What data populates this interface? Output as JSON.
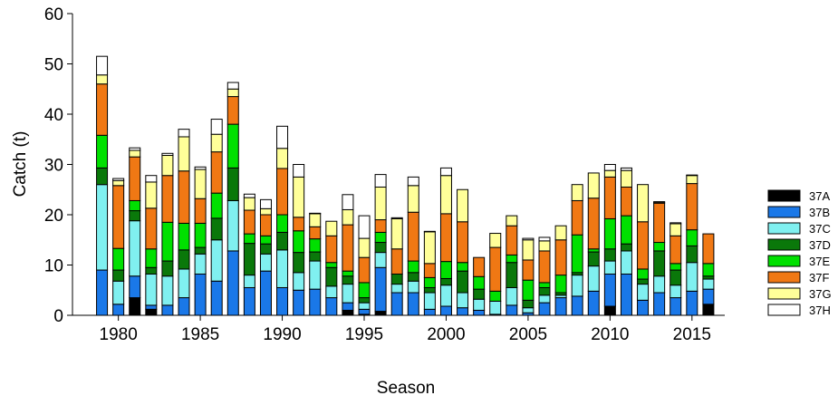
{
  "chart_data": {
    "type": "stacked-bar",
    "x_label": "Season",
    "y_label": "Catch (t)",
    "x": [
      1979,
      1980,
      1981,
      1982,
      1983,
      1984,
      1985,
      1986,
      1987,
      1988,
      1989,
      1990,
      1991,
      1992,
      1993,
      1994,
      1995,
      1996,
      1997,
      1998,
      1999,
      2000,
      2001,
      2002,
      2003,
      2004,
      2005,
      2006,
      2007,
      2008,
      2009,
      2010,
      2011,
      2012,
      2013,
      2014,
      2015,
      2016
    ],
    "xlim": [
      1977.2,
      2017
    ],
    "xticks": [
      1980,
      1985,
      1990,
      1995,
      2000,
      2005,
      2010,
      2015
    ],
    "ylim": [
      0,
      60
    ],
    "yticks": [
      0,
      10,
      20,
      30,
      40,
      50,
      60
    ],
    "legend": "right",
    "grid": false,
    "series": [
      {
        "name": "37A",
        "color": "#000000",
        "values": [
          0,
          0,
          3.5,
          1.2,
          0,
          0,
          0,
          0,
          0,
          0,
          0,
          0,
          0,
          0,
          0,
          1,
          0.2,
          0.8,
          0,
          0,
          0,
          0,
          0,
          0,
          0,
          0,
          0,
          0,
          0,
          0,
          0,
          1.8,
          0,
          0,
          0,
          0,
          0,
          2.2
        ]
      },
      {
        "name": "37B",
        "color": "#1a78e8",
        "values": [
          9,
          2.2,
          4.3,
          0.8,
          2,
          3.5,
          8.2,
          6.8,
          12.8,
          5.5,
          8.8,
          5.5,
          5,
          5.2,
          3.5,
          1.5,
          1,
          8.7,
          4.5,
          4.5,
          1.2,
          1.8,
          1.5,
          1,
          0.2,
          2,
          0.5,
          2.5,
          3.5,
          3.8,
          4.8,
          6.4,
          8.2,
          3,
          4.5,
          3.5,
          4.8,
          3
        ]
      },
      {
        "name": "37C",
        "color": "#80f0f0",
        "values": [
          17,
          4.6,
          11,
          6.2,
          5.8,
          5.7,
          4,
          8.2,
          10,
          2.5,
          3.4,
          7.5,
          3.5,
          5.6,
          2.3,
          3.7,
          1.3,
          3,
          1.7,
          2.3,
          3.3,
          4.2,
          3,
          2.2,
          2.6,
          3.5,
          1,
          1.5,
          0.5,
          4.2,
          5,
          2.6,
          4.6,
          3.2,
          3.3,
          2.5,
          5.7,
          2
        ]
      },
      {
        "name": "37D",
        "color": "#0a780a",
        "values": [
          3.3,
          2.2,
          2,
          1.3,
          3,
          3.8,
          1.3,
          4.3,
          6.5,
          6.3,
          2,
          3.5,
          4,
          1.8,
          3.7,
          1.6,
          1,
          2,
          2,
          1.7,
          1,
          1.3,
          4.3,
          2,
          0,
          5,
          1.5,
          1.5,
          0.5,
          0.5,
          2.8,
          2.4,
          1.4,
          1,
          5,
          3,
          3.3,
          0.6
        ]
      },
      {
        "name": "37E",
        "color": "#00e000",
        "values": [
          6.5,
          4.3,
          2,
          3.7,
          7.7,
          5.3,
          4.8,
          5,
          8.7,
          1.9,
          1.6,
          3.5,
          4.3,
          2.6,
          1,
          1,
          3,
          2,
          0,
          2.3,
          2,
          3.4,
          1.7,
          2.5,
          2,
          1.5,
          4,
          1,
          3.5,
          7.5,
          0.6,
          6,
          5.6,
          2,
          1.7,
          1.3,
          3.2,
          2.5
        ]
      },
      {
        "name": "37F",
        "color": "#f07814",
        "values": [
          10.2,
          12.5,
          8.7,
          8.1,
          9.3,
          10.4,
          4.9,
          8.2,
          5.5,
          4.7,
          4.2,
          9.2,
          2.7,
          2.4,
          5.3,
          9.2,
          5,
          2.5,
          5,
          9.7,
          2.8,
          9.5,
          8.1,
          3.8,
          8.7,
          5.8,
          4,
          6.3,
          7,
          6.8,
          10.1,
          8.3,
          5.7,
          9.4,
          7.8,
          5.5,
          9.2,
          5.9
        ]
      },
      {
        "name": "37G",
        "color": "#ffff99",
        "values": [
          1.8,
          1,
          1.3,
          5.2,
          4,
          6.8,
          5.8,
          3.5,
          1.5,
          2.5,
          1.2,
          4,
          8,
          2.6,
          2.9,
          3,
          3.8,
          6.5,
          6,
          5.3,
          6.3,
          7.6,
          6.4,
          0,
          2.8,
          2,
          4,
          2,
          2.8,
          3.2,
          5,
          1.3,
          3.3,
          7.4,
          0.2,
          2.4,
          1.6,
          0
        ]
      },
      {
        "name": "37H",
        "color": "#ffffff",
        "values": [
          3.7,
          0.4,
          0.5,
          1.3,
          0.4,
          1.5,
          0.5,
          3,
          1.3,
          0.7,
          1.8,
          4.4,
          2.5,
          0.1,
          0,
          3,
          4.5,
          2.5,
          0.2,
          1.7,
          0.1,
          1.5,
          0,
          0,
          0,
          0,
          0.3,
          0.7,
          0,
          0,
          0,
          1.2,
          0.5,
          0,
          0.1,
          0.2,
          0.1,
          0
        ]
      }
    ]
  }
}
